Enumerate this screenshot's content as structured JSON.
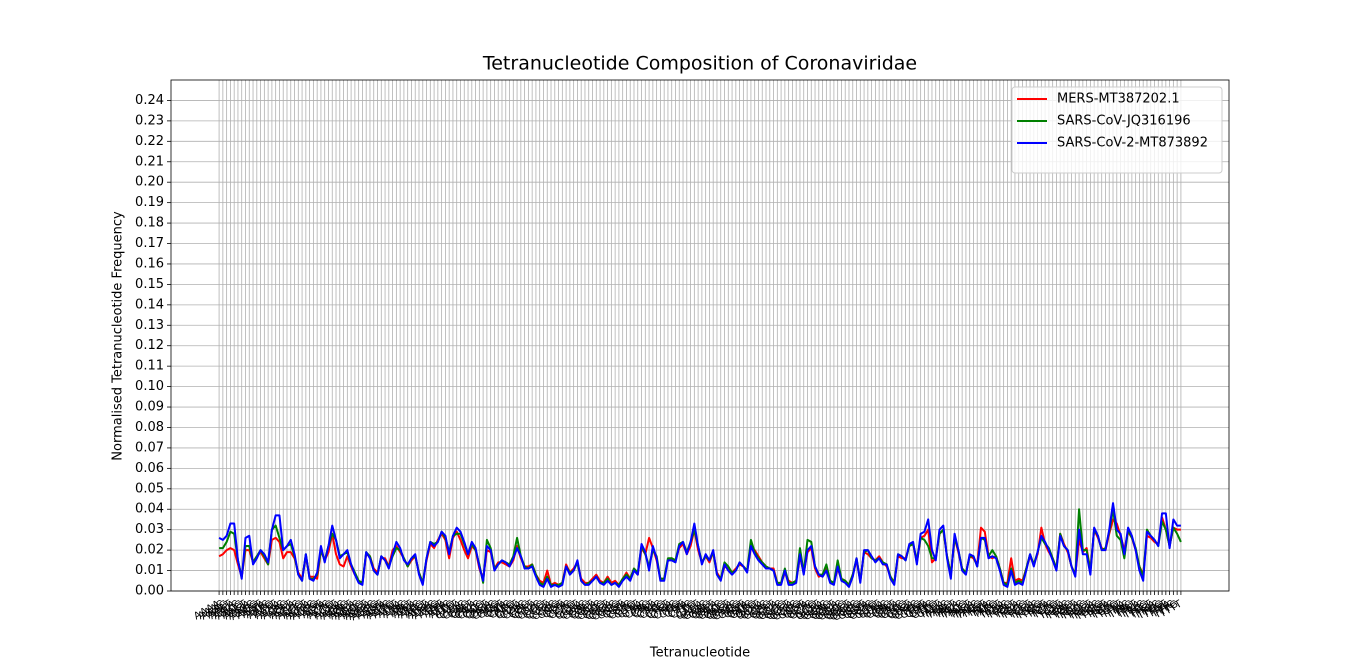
{
  "chart_data": {
    "type": "line",
    "title": "Tetranucleotide Composition of Coronaviridae",
    "xlabel": "Tetranucleotide",
    "ylabel": "Normalised Tetranucleotide Frequency",
    "legend": "upper right",
    "grid": true,
    "ylim": [
      0,
      0.25
    ],
    "yticks": [
      {
        "value": 0,
        "label": "0.00"
      },
      {
        "value": 0.01,
        "label": "0.01"
      },
      {
        "value": 0.02,
        "label": "0.02"
      },
      {
        "value": 0.03,
        "label": "0.03"
      },
      {
        "value": 0.04,
        "label": "0.04"
      },
      {
        "value": 0.05,
        "label": "0.05"
      },
      {
        "value": 0.06,
        "label": "0.06"
      },
      {
        "value": 0.07,
        "label": "0.07"
      },
      {
        "value": 0.08,
        "label": "0.08"
      },
      {
        "value": 0.09,
        "label": "0.09"
      },
      {
        "value": 0.1,
        "label": "0.10"
      },
      {
        "value": 0.11,
        "label": "0.11"
      },
      {
        "value": 0.12,
        "label": "0.12"
      },
      {
        "value": 0.13,
        "label": "0.13"
      },
      {
        "value": 0.14,
        "label": "0.14"
      },
      {
        "value": 0.15,
        "label": "0.15"
      },
      {
        "value": 0.16,
        "label": "0.16"
      },
      {
        "value": 0.17,
        "label": "0.17"
      },
      {
        "value": 0.18,
        "label": "0.18"
      },
      {
        "value": 0.19,
        "label": "0.19"
      },
      {
        "value": 0.2,
        "label": "0.20"
      },
      {
        "value": 0.21,
        "label": "0.21"
      },
      {
        "value": 0.22,
        "label": "0.22"
      },
      {
        "value": 0.23,
        "label": "0.23"
      },
      {
        "value": 0.24,
        "label": "0.24"
      }
    ],
    "categories": [
      "AAAA",
      "AAAC",
      "AAAG",
      "AAAT",
      "AACA",
      "AACC",
      "AACG",
      "AACT",
      "AAGA",
      "AAGC",
      "AAGG",
      "AAGT",
      "AATA",
      "AATC",
      "AATG",
      "AATT",
      "ACAA",
      "ACAC",
      "ACAG",
      "ACAT",
      "ACCA",
      "ACCC",
      "ACCG",
      "ACCT",
      "ACGA",
      "ACGC",
      "ACGG",
      "ACGT",
      "ACTA",
      "ACTC",
      "ACTG",
      "ACTT",
      "AGAA",
      "AGAC",
      "AGAG",
      "AGAT",
      "AGCA",
      "AGCC",
      "AGCG",
      "AGCT",
      "AGGA",
      "AGGC",
      "AGGG",
      "AGGT",
      "AGTA",
      "AGTC",
      "AGTG",
      "AGTT",
      "ATAA",
      "ATAC",
      "ATAG",
      "ATAT",
      "ATCA",
      "ATCC",
      "ATCG",
      "ATCT",
      "ATGA",
      "ATGC",
      "ATGG",
      "ATGT",
      "ATTA",
      "ATTC",
      "ATTG",
      "ATTT",
      "CAAA",
      "CAAC",
      "CAAG",
      "CAAT",
      "CACA",
      "CACC",
      "CACG",
      "CACT",
      "CAGA",
      "CAGC",
      "CAGG",
      "CAGT",
      "CATA",
      "CATC",
      "CATG",
      "CATT",
      "CCAA",
      "CCAC",
      "CCAG",
      "CCAT",
      "CCCA",
      "CCCC",
      "CCCG",
      "CCCT",
      "CCGA",
      "CCGC",
      "CCGG",
      "CCGT",
      "CCTA",
      "CCTC",
      "CCTG",
      "CCTT",
      "CGAA",
      "CGAC",
      "CGAG",
      "CGAT",
      "CGCA",
      "CGCC",
      "CGCG",
      "CGCT",
      "CGGA",
      "CGGC",
      "CGGG",
      "CGGT",
      "CGTA",
      "CGTC",
      "CGTG",
      "CGTT",
      "CTAA",
      "CTAC",
      "CTAG",
      "CTAT",
      "CTCA",
      "CTCC",
      "CTCG",
      "CTCT",
      "CTGA",
      "CTGC",
      "CTGG",
      "CTGT",
      "CTTA",
      "CTTC",
      "CTTG",
      "CTTT",
      "GAAA",
      "GAAC",
      "GAAG",
      "GAAT",
      "GACA",
      "GACC",
      "GACG",
      "GACT",
      "GAGA",
      "GAGC",
      "GAGG",
      "GAGT",
      "GATA",
      "GATC",
      "GATG",
      "GATT",
      "GCAA",
      "GCAC",
      "GCAG",
      "GCAT",
      "GCCA",
      "GCCC",
      "GCCG",
      "GCCT",
      "GCGA",
      "GCGC",
      "GCGG",
      "GCGT",
      "GCTA",
      "GCTC",
      "GCTG",
      "GCTT",
      "GGAA",
      "GGAC",
      "GGAG",
      "GGAT",
      "GGCA",
      "GGCC",
      "GGCG",
      "GGCT",
      "GGGA",
      "GGGC",
      "GGGG",
      "GGGT",
      "GGTA",
      "GGTC",
      "GGTG",
      "GGTT",
      "GTAA",
      "GTAC",
      "GTAG",
      "GTAT",
      "GTCA",
      "GTCC",
      "GTCG",
      "GTCT",
      "GTGA",
      "GTGC",
      "GTGG",
      "GTGT",
      "GTTA",
      "GTTC",
      "GTTG",
      "GTTT",
      "TAAA",
      "TAAC",
      "TAAG",
      "TAAT",
      "TACA",
      "TACC",
      "TACG",
      "TACT",
      "TAGA",
      "TAGC",
      "TAGG",
      "TAGT",
      "TATA",
      "TATC",
      "TATG",
      "TATT",
      "TCAA",
      "TCAC",
      "TCAG",
      "TCAT",
      "TCCA",
      "TCCC",
      "TCCG",
      "TCCT",
      "TCGA",
      "TCGC",
      "TCGG",
      "TCGT",
      "TCTA",
      "TCTC",
      "TCTG",
      "TCTT",
      "TGAA",
      "TGAC",
      "TGAG",
      "TGAT",
      "TGCA",
      "TGCC",
      "TGCG",
      "TGCT",
      "TGGA",
      "TGGC",
      "TGGG",
      "TGGT",
      "TGTA",
      "TGTC",
      "TGTG",
      "TGTT",
      "TTAA",
      "TTAC",
      "TTAG",
      "TTAT",
      "TTCA",
      "TTCC",
      "TTCG",
      "TTCT",
      "TTGA",
      "TTGC",
      "TTGG",
      "TTGT",
      "TTTA",
      "TTTC",
      "TTTG",
      "TTTT"
    ],
    "series": [
      {
        "name": "MERS-MT387202.1",
        "color": "#ff0000",
        "values": [
          0.017,
          0.018,
          0.02,
          0.021,
          0.02,
          0.013,
          0.007,
          0.02,
          0.02,
          0.014,
          0.017,
          0.019,
          0.016,
          0.013,
          0.025,
          0.026,
          0.024,
          0.016,
          0.019,
          0.019,
          0.016,
          0.009,
          0.006,
          0.017,
          0.007,
          0.007,
          0.006,
          0.02,
          0.015,
          0.019,
          0.028,
          0.018,
          0.013,
          0.012,
          0.017,
          0.012,
          0.008,
          0.005,
          0.004,
          0.018,
          0.017,
          0.011,
          0.009,
          0.016,
          0.016,
          0.012,
          0.02,
          0.022,
          0.019,
          0.016,
          0.012,
          0.015,
          0.017,
          0.009,
          0.004,
          0.015,
          0.023,
          0.021,
          0.025,
          0.028,
          0.025,
          0.016,
          0.026,
          0.029,
          0.025,
          0.02,
          0.016,
          0.022,
          0.02,
          0.011,
          0.006,
          0.02,
          0.019,
          0.011,
          0.014,
          0.014,
          0.013,
          0.012,
          0.015,
          0.022,
          0.016,
          0.012,
          0.012,
          0.013,
          0.008,
          0.005,
          0.004,
          0.01,
          0.003,
          0.004,
          0.003,
          0.004,
          0.013,
          0.009,
          0.011,
          0.014,
          0.006,
          0.004,
          0.004,
          0.006,
          0.008,
          0.005,
          0.004,
          0.007,
          0.004,
          0.005,
          0.003,
          0.006,
          0.009,
          0.006,
          0.011,
          0.008,
          0.021,
          0.018,
          0.026,
          0.021,
          0.015,
          0.006,
          0.006,
          0.015,
          0.016,
          0.015,
          0.021,
          0.023,
          0.018,
          0.022,
          0.03,
          0.02,
          0.014,
          0.017,
          0.014,
          0.019,
          0.009,
          0.006,
          0.012,
          0.011,
          0.009,
          0.011,
          0.013,
          0.012,
          0.01,
          0.021,
          0.02,
          0.017,
          0.014,
          0.012,
          0.011,
          0.011,
          0.004,
          0.004,
          0.009,
          0.005,
          0.004,
          0.005,
          0.017,
          0.009,
          0.019,
          0.021,
          0.011,
          0.007,
          0.008,
          0.011,
          0.005,
          0.004,
          0.011,
          0.006,
          0.005,
          0.003,
          0.008,
          0.015,
          0.005,
          0.019,
          0.018,
          0.016,
          0.015,
          0.017,
          0.014,
          0.012,
          0.007,
          0.004,
          0.017,
          0.016,
          0.016,
          0.022,
          0.023,
          0.014,
          0.026,
          0.027,
          0.03,
          0.014,
          0.016,
          0.028,
          0.03,
          0.017,
          0.008,
          0.026,
          0.019,
          0.011,
          0.009,
          0.017,
          0.016,
          0.013,
          0.031,
          0.029,
          0.017,
          0.016,
          0.017,
          0.011,
          0.004,
          0.004,
          0.016,
          0.005,
          0.006,
          0.005,
          0.011,
          0.017,
          0.013,
          0.018,
          0.031,
          0.023,
          0.019,
          0.016,
          0.011,
          0.028,
          0.023,
          0.019,
          0.012,
          0.008,
          0.025,
          0.019,
          0.021,
          0.01,
          0.03,
          0.026,
          0.021,
          0.02,
          0.028,
          0.035,
          0.033,
          0.027,
          0.02,
          0.029,
          0.026,
          0.02,
          0.012,
          0.008,
          0.027,
          0.026,
          0.024,
          0.023,
          0.036,
          0.03,
          0.022,
          0.031,
          0.03,
          0.03
        ]
      },
      {
        "name": "SARS-CoV-JQ316196",
        "color": "#008000",
        "values": [
          0.021,
          0.021,
          0.024,
          0.029,
          0.028,
          0.015,
          0.007,
          0.022,
          0.022,
          0.014,
          0.017,
          0.02,
          0.017,
          0.013,
          0.03,
          0.032,
          0.026,
          0.02,
          0.022,
          0.023,
          0.017,
          0.008,
          0.005,
          0.018,
          0.006,
          0.006,
          0.008,
          0.02,
          0.015,
          0.022,
          0.028,
          0.025,
          0.017,
          0.018,
          0.019,
          0.013,
          0.009,
          0.005,
          0.004,
          0.019,
          0.017,
          0.01,
          0.008,
          0.017,
          0.015,
          0.012,
          0.017,
          0.021,
          0.02,
          0.016,
          0.012,
          0.016,
          0.017,
          0.009,
          0.004,
          0.016,
          0.024,
          0.023,
          0.024,
          0.029,
          0.026,
          0.019,
          0.027,
          0.028,
          0.028,
          0.023,
          0.018,
          0.023,
          0.02,
          0.013,
          0.004,
          0.025,
          0.021,
          0.011,
          0.013,
          0.015,
          0.014,
          0.013,
          0.017,
          0.026,
          0.017,
          0.012,
          0.011,
          0.013,
          0.008,
          0.004,
          0.003,
          0.007,
          0.003,
          0.003,
          0.003,
          0.004,
          0.012,
          0.009,
          0.01,
          0.014,
          0.005,
          0.003,
          0.004,
          0.005,
          0.007,
          0.004,
          0.004,
          0.006,
          0.003,
          0.004,
          0.003,
          0.006,
          0.008,
          0.006,
          0.011,
          0.009,
          0.022,
          0.018,
          0.012,
          0.02,
          0.017,
          0.006,
          0.006,
          0.016,
          0.016,
          0.015,
          0.023,
          0.024,
          0.019,
          0.024,
          0.03,
          0.022,
          0.014,
          0.017,
          0.015,
          0.019,
          0.008,
          0.006,
          0.014,
          0.012,
          0.009,
          0.01,
          0.014,
          0.012,
          0.01,
          0.025,
          0.019,
          0.016,
          0.014,
          0.012,
          0.011,
          0.01,
          0.004,
          0.004,
          0.011,
          0.004,
          0.004,
          0.005,
          0.021,
          0.009,
          0.025,
          0.024,
          0.012,
          0.008,
          0.008,
          0.013,
          0.005,
          0.004,
          0.015,
          0.006,
          0.005,
          0.003,
          0.008,
          0.016,
          0.005,
          0.019,
          0.02,
          0.016,
          0.015,
          0.016,
          0.014,
          0.013,
          0.007,
          0.004,
          0.018,
          0.017,
          0.015,
          0.022,
          0.023,
          0.015,
          0.026,
          0.025,
          0.022,
          0.016,
          0.016,
          0.028,
          0.03,
          0.017,
          0.008,
          0.026,
          0.02,
          0.011,
          0.009,
          0.017,
          0.017,
          0.012,
          0.026,
          0.025,
          0.017,
          0.02,
          0.017,
          0.011,
          0.004,
          0.003,
          0.011,
          0.004,
          0.005,
          0.004,
          0.011,
          0.018,
          0.013,
          0.019,
          0.026,
          0.023,
          0.021,
          0.016,
          0.011,
          0.028,
          0.022,
          0.02,
          0.012,
          0.008,
          0.04,
          0.02,
          0.02,
          0.01,
          0.03,
          0.027,
          0.02,
          0.021,
          0.029,
          0.04,
          0.027,
          0.025,
          0.016,
          0.03,
          0.026,
          0.021,
          0.012,
          0.007,
          0.03,
          0.027,
          0.025,
          0.022,
          0.034,
          0.03,
          0.022,
          0.031,
          0.028,
          0.024
        ]
      },
      {
        "name": "SARS-CoV-2-MT873892",
        "color": "#0000ff",
        "values": [
          0.026,
          0.025,
          0.027,
          0.033,
          0.033,
          0.015,
          0.006,
          0.026,
          0.027,
          0.013,
          0.016,
          0.02,
          0.018,
          0.014,
          0.03,
          0.037,
          0.037,
          0.02,
          0.022,
          0.025,
          0.018,
          0.008,
          0.005,
          0.018,
          0.006,
          0.005,
          0.009,
          0.022,
          0.014,
          0.022,
          0.032,
          0.025,
          0.016,
          0.018,
          0.02,
          0.013,
          0.008,
          0.004,
          0.003,
          0.019,
          0.016,
          0.01,
          0.008,
          0.017,
          0.015,
          0.011,
          0.018,
          0.024,
          0.021,
          0.015,
          0.013,
          0.016,
          0.018,
          0.008,
          0.003,
          0.016,
          0.024,
          0.022,
          0.024,
          0.029,
          0.027,
          0.018,
          0.027,
          0.031,
          0.029,
          0.024,
          0.018,
          0.024,
          0.021,
          0.012,
          0.005,
          0.022,
          0.02,
          0.01,
          0.013,
          0.015,
          0.014,
          0.012,
          0.016,
          0.021,
          0.017,
          0.011,
          0.011,
          0.012,
          0.007,
          0.003,
          0.002,
          0.006,
          0.002,
          0.003,
          0.002,
          0.003,
          0.012,
          0.008,
          0.01,
          0.015,
          0.005,
          0.003,
          0.003,
          0.005,
          0.007,
          0.004,
          0.003,
          0.005,
          0.003,
          0.004,
          0.002,
          0.005,
          0.007,
          0.005,
          0.01,
          0.008,
          0.023,
          0.019,
          0.01,
          0.022,
          0.016,
          0.005,
          0.005,
          0.015,
          0.015,
          0.014,
          0.022,
          0.024,
          0.018,
          0.024,
          0.033,
          0.022,
          0.013,
          0.018,
          0.015,
          0.02,
          0.008,
          0.005,
          0.013,
          0.01,
          0.008,
          0.01,
          0.014,
          0.012,
          0.009,
          0.022,
          0.018,
          0.015,
          0.013,
          0.011,
          0.011,
          0.01,
          0.003,
          0.003,
          0.01,
          0.003,
          0.003,
          0.004,
          0.018,
          0.008,
          0.02,
          0.022,
          0.012,
          0.008,
          0.007,
          0.01,
          0.004,
          0.003,
          0.012,
          0.005,
          0.004,
          0.002,
          0.007,
          0.016,
          0.004,
          0.02,
          0.02,
          0.017,
          0.014,
          0.016,
          0.013,
          0.013,
          0.006,
          0.003,
          0.018,
          0.017,
          0.015,
          0.023,
          0.024,
          0.013,
          0.028,
          0.029,
          0.035,
          0.02,
          0.015,
          0.03,
          0.032,
          0.016,
          0.006,
          0.028,
          0.02,
          0.01,
          0.008,
          0.018,
          0.017,
          0.012,
          0.026,
          0.026,
          0.016,
          0.017,
          0.016,
          0.01,
          0.003,
          0.002,
          0.01,
          0.003,
          0.004,
          0.003,
          0.01,
          0.018,
          0.012,
          0.019,
          0.027,
          0.024,
          0.02,
          0.015,
          0.01,
          0.027,
          0.022,
          0.02,
          0.012,
          0.007,
          0.03,
          0.018,
          0.018,
          0.008,
          0.031,
          0.027,
          0.02,
          0.02,
          0.03,
          0.043,
          0.03,
          0.028,
          0.018,
          0.031,
          0.027,
          0.02,
          0.01,
          0.005,
          0.029,
          0.027,
          0.025,
          0.022,
          0.038,
          0.038,
          0.021,
          0.035,
          0.032,
          0.032
        ]
      }
    ]
  }
}
